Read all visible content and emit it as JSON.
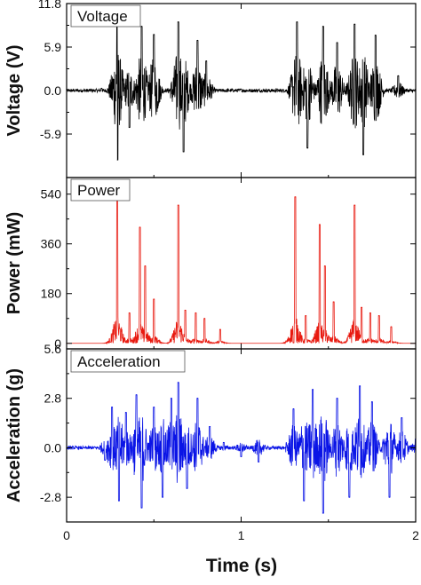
{
  "chart_data": [
    {
      "type": "line",
      "legend": "Voltage",
      "ylabel": "Voltage (V)",
      "ylim": [
        -11.8,
        11.8
      ],
      "yticks": [
        "11.8",
        "5.9",
        "0.0",
        "-5.9"
      ],
      "ytick_values": [
        11.8,
        5.9,
        0.0,
        -5.9
      ],
      "color": "#000000",
      "x": [
        0.0,
        0.2,
        0.29,
        0.292,
        0.36,
        0.43,
        0.5,
        0.64,
        0.67,
        0.75,
        0.8,
        1.0,
        1.3,
        1.32,
        1.38,
        1.47,
        1.55,
        1.65,
        1.7,
        1.77,
        1.9,
        2.0
      ],
      "y": [
        0.0,
        0.3,
        9.6,
        -9.4,
        -5.0,
        8.7,
        7.6,
        9.3,
        -8.3,
        6.8,
        4.0,
        0.2,
        0.5,
        9.3,
        -7.8,
        8.7,
        6.5,
        9.0,
        -8.7,
        7.5,
        2.0,
        0.1
      ]
    },
    {
      "type": "line",
      "legend": "Power",
      "ylabel": "Power (mW)",
      "ylim": [
        -20,
        600
      ],
      "yticks": [
        "540",
        "360",
        "180",
        "0"
      ],
      "ytick_values": [
        540,
        360,
        180,
        0
      ],
      "color": "#e8190f",
      "x": [
        0.0,
        0.29,
        0.36,
        0.42,
        0.45,
        0.5,
        0.64,
        0.68,
        0.74,
        0.79,
        0.88,
        1.0,
        1.3,
        1.31,
        1.37,
        1.45,
        1.48,
        1.53,
        1.65,
        1.69,
        1.74,
        1.79,
        1.86,
        2.0
      ],
      "y": [
        0,
        540,
        110,
        420,
        280,
        160,
        500,
        120,
        110,
        90,
        50,
        0,
        2,
        530,
        100,
        430,
        280,
        150,
        500,
        130,
        110,
        100,
        60,
        0
      ]
    },
    {
      "type": "line",
      "legend": "Acceleration",
      "ylabel": "Acceleration (g)",
      "ylim": [
        -4.2,
        5.6
      ],
      "yticks": [
        "5.6",
        "2.8",
        "0.0",
        "-2.8"
      ],
      "ytick_values": [
        5.6,
        2.8,
        0.0,
        -2.8
      ],
      "color": "#0a14e6",
      "x": [
        0.0,
        0.1,
        0.22,
        0.26,
        0.3,
        0.34,
        0.4,
        0.43,
        0.5,
        0.55,
        0.6,
        0.64,
        0.69,
        0.75,
        0.82,
        0.9,
        1.0,
        1.1,
        1.25,
        1.3,
        1.36,
        1.41,
        1.47,
        1.55,
        1.62,
        1.68,
        1.75,
        1.85,
        1.92,
        2.0
      ],
      "y": [
        0.0,
        0.0,
        -0.7,
        2.3,
        -3.0,
        2.0,
        3.0,
        -3.4,
        2.3,
        -2.8,
        2.8,
        3.7,
        -2.3,
        2.8,
        1.2,
        0.3,
        -0.5,
        -0.8,
        0.0,
        2.2,
        -3.0,
        3.3,
        -3.7,
        2.8,
        -2.8,
        3.5,
        2.6,
        -2.8,
        1.7,
        0.5
      ]
    }
  ],
  "shared": {
    "xlabel": "Time (s)",
    "xlim": [
      0,
      2
    ],
    "xticks": [
      "0",
      "1",
      "2"
    ],
    "xtick_values": [
      0,
      1,
      2
    ]
  }
}
